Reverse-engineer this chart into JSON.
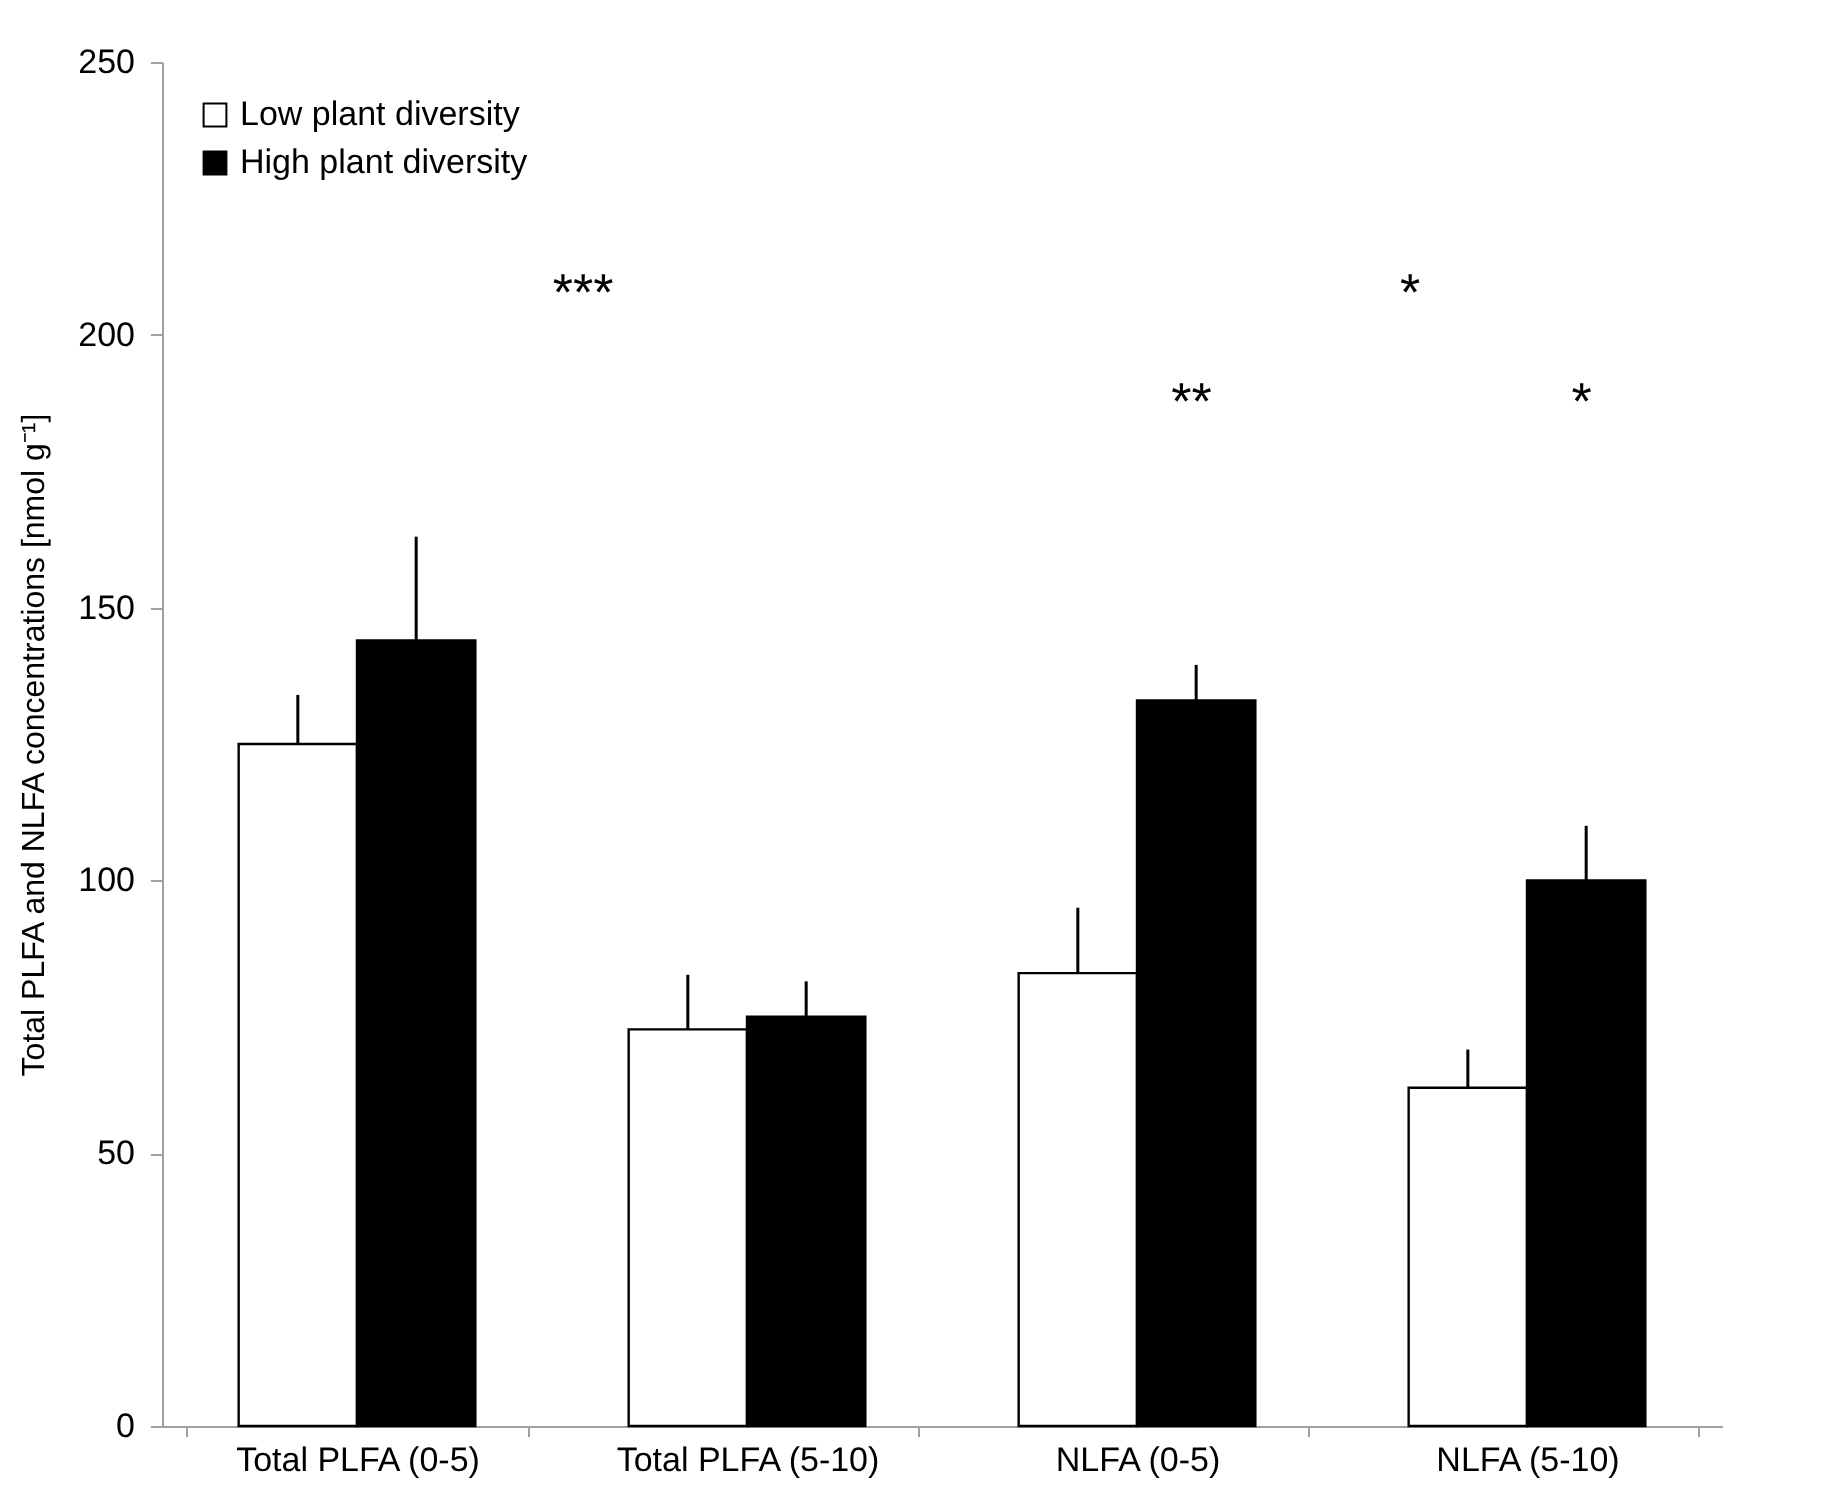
{
  "chart_data": {
    "type": "bar",
    "ylabel": "Total PLFA and NLFA concentrations [nmol g⁻¹]",
    "categories": [
      "Total PLFA (0-5)",
      "Total PLFA (5-10)",
      "NLFA (0-5)",
      "NLFA (5-10)"
    ],
    "series": [
      {
        "name": "Low plant diversity",
        "color": "#ffffff",
        "values": [
          125,
          72.7,
          83,
          62
        ],
        "errors": [
          9,
          10,
          12,
          7
        ]
      },
      {
        "name": "High plant diversity",
        "color": "#000000",
        "values": [
          144,
          75,
          133,
          100
        ],
        "errors": [
          19,
          6.5,
          6.5,
          10
        ]
      }
    ],
    "ylim": [
      0,
      250
    ],
    "yticks": [
      0,
      50,
      100,
      150,
      200,
      250
    ],
    "grid": false,
    "legend": "top left",
    "annotations": [
      "***",
      "**",
      "*",
      "*"
    ]
  }
}
